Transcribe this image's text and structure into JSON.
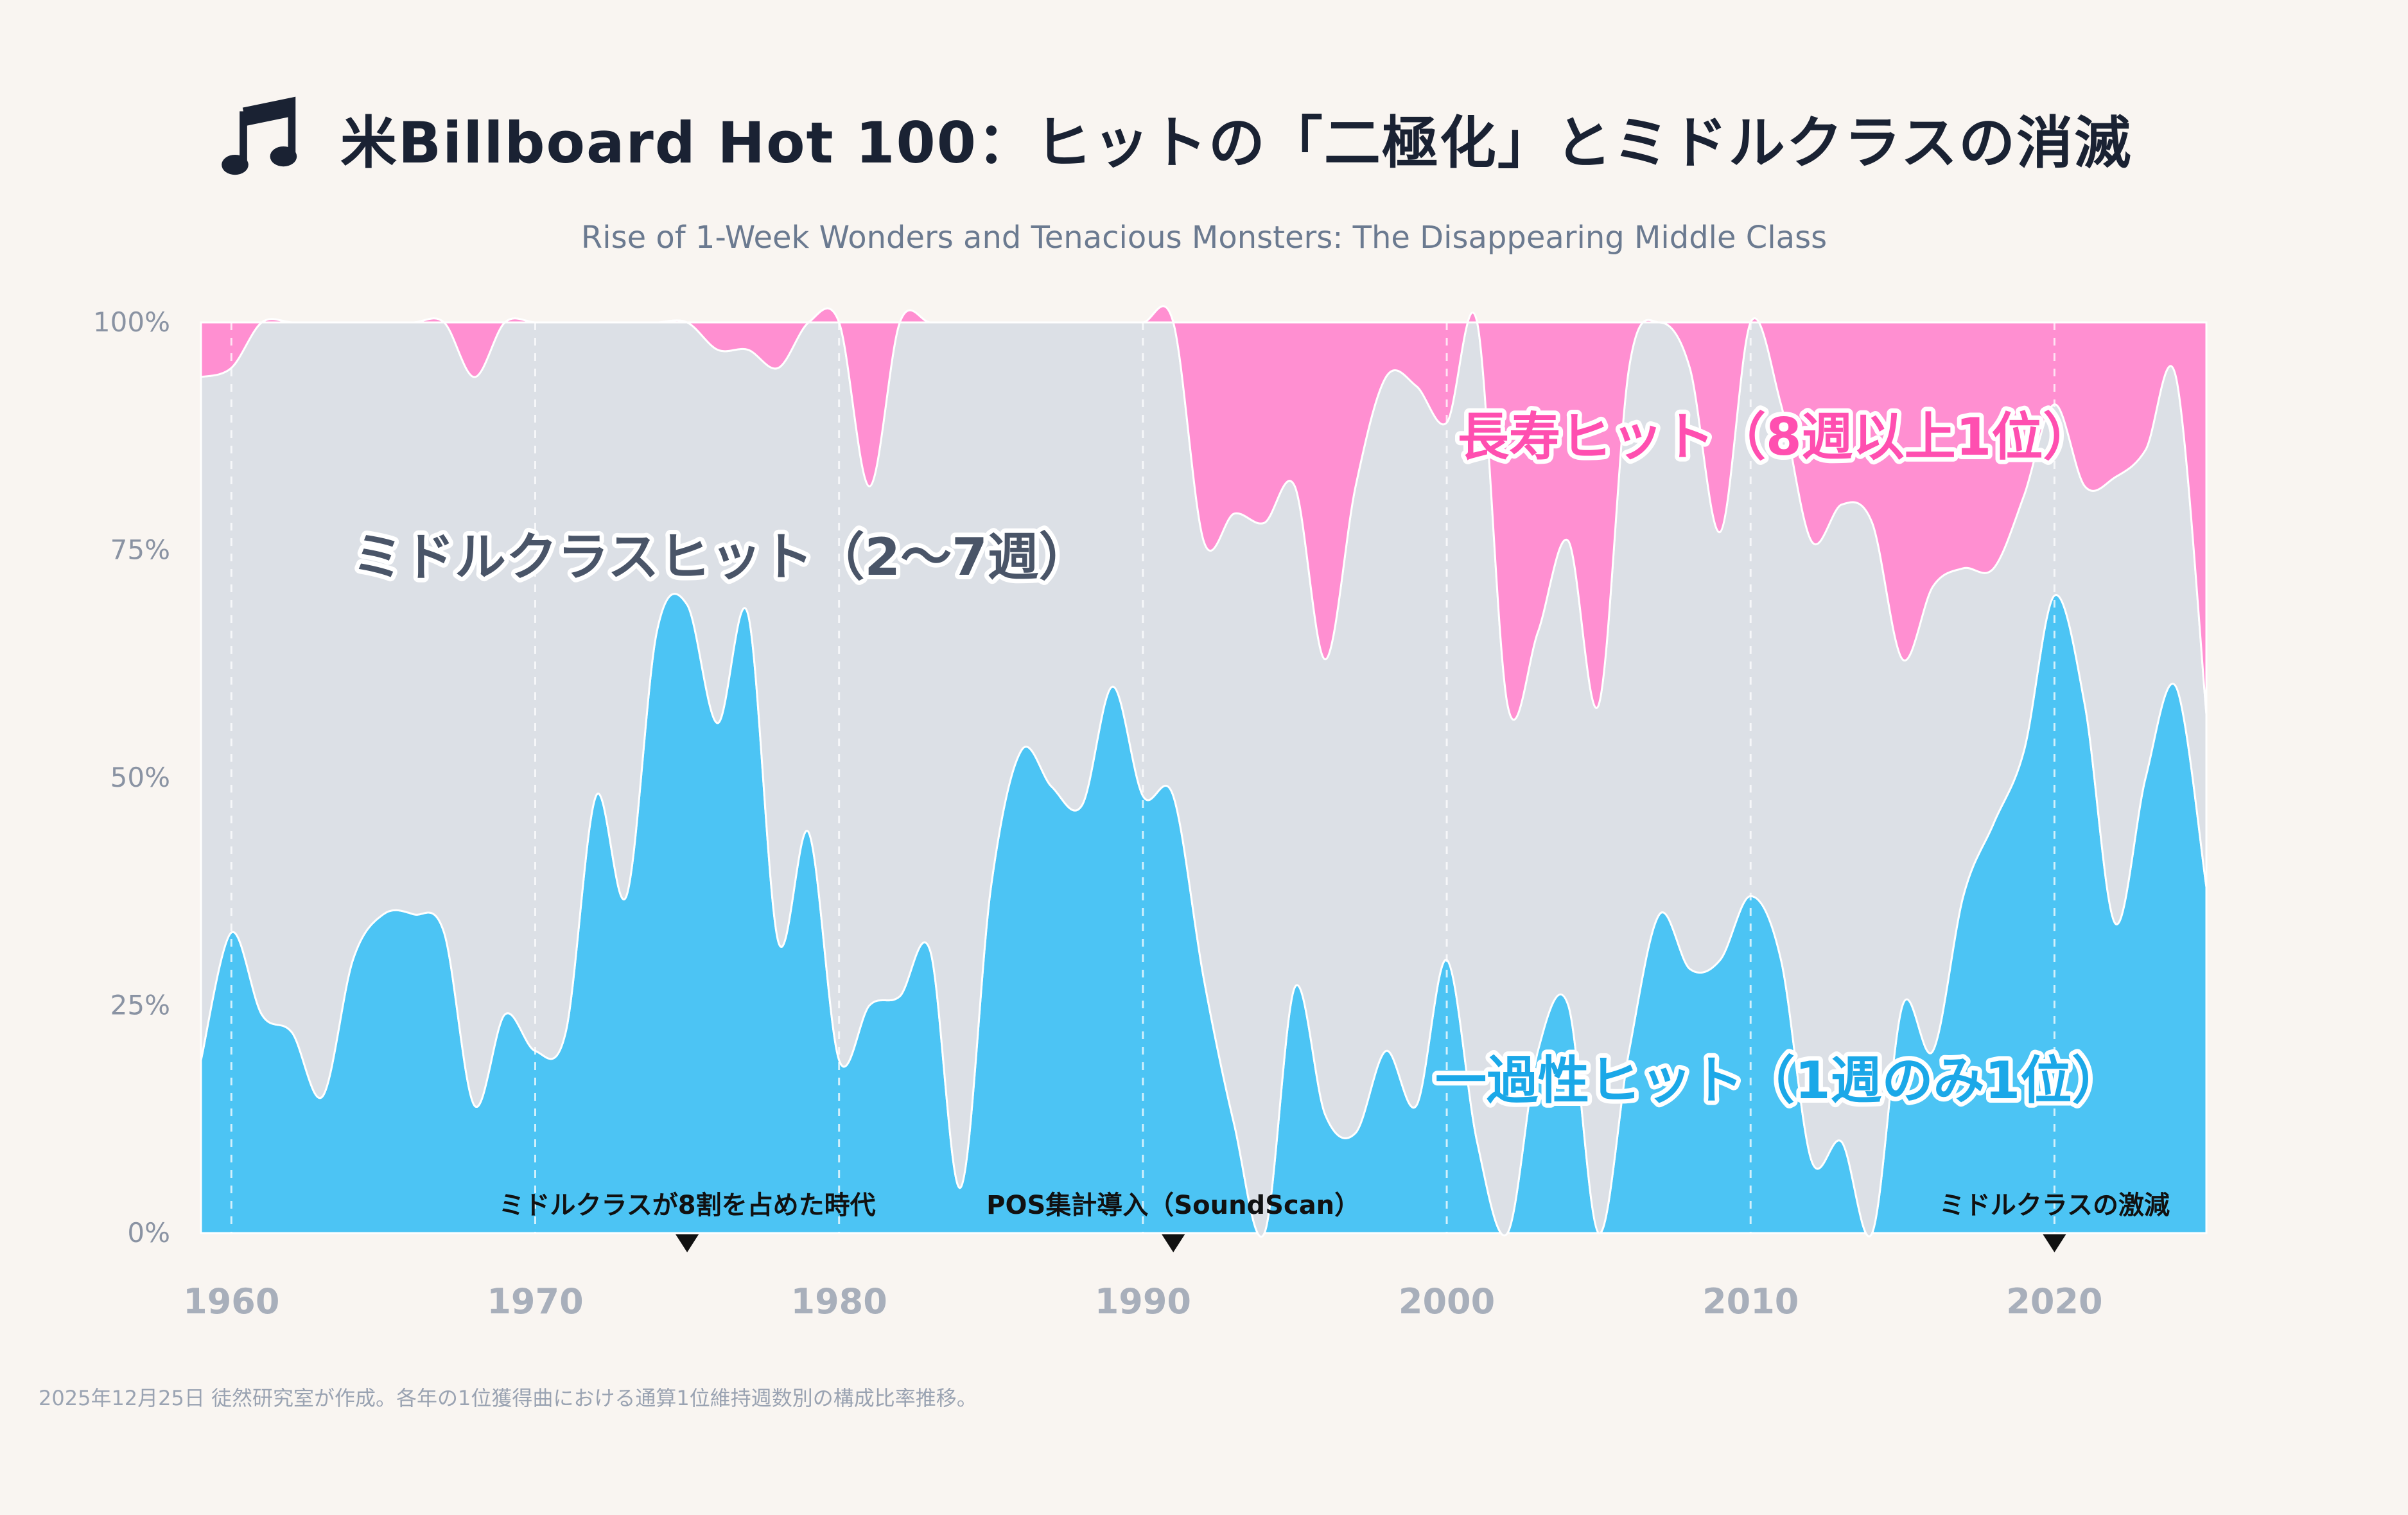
{
  "header": {
    "title": "米Billboard Hot 100：ヒットの「二極化」とミドルクラスの消滅",
    "subtitle": "Rise of 1-Week Wonders and Tenacious Monsters: The Disappearing Middle Class",
    "icon": "music-note-icon"
  },
  "footer": {
    "note": "2025年12月25日 徒然研究室が作成。各年の1位獲得曲における通算1位維持週数別の構成比率推移。"
  },
  "chart_data": {
    "type": "area",
    "stacked": true,
    "normalized": true,
    "x": [
      1959,
      1960,
      1961,
      1962,
      1963,
      1964,
      1965,
      1966,
      1967,
      1968,
      1969,
      1970,
      1971,
      1972,
      1973,
      1974,
      1975,
      1976,
      1977,
      1978,
      1979,
      1980,
      1981,
      1982,
      1983,
      1984,
      1985,
      1986,
      1987,
      1988,
      1989,
      1990,
      1991,
      1992,
      1993,
      1994,
      1995,
      1996,
      1997,
      1998,
      1999,
      2000,
      2001,
      2002,
      2003,
      2004,
      2005,
      2006,
      2007,
      2008,
      2009,
      2010,
      2011,
      2012,
      2013,
      2014,
      2015,
      2016,
      2017,
      2018,
      2019,
      2020,
      2021,
      2022,
      2023,
      2024,
      2025
    ],
    "series": [
      {
        "name": "一過性ヒット（1週のみ1位）",
        "color": "#4cc4f4",
        "values": [
          19,
          33,
          24,
          22,
          15,
          30,
          35,
          35,
          33,
          14,
          24,
          20,
          22,
          48,
          37,
          66,
          69,
          56,
          68,
          32,
          44,
          19,
          25,
          26,
          31,
          5,
          38,
          53,
          49,
          47,
          60,
          48,
          48,
          28,
          12,
          0,
          27,
          13,
          11,
          20,
          14,
          30,
          10,
          0,
          20,
          25,
          0,
          20,
          35,
          29,
          30,
          37,
          30,
          8,
          10,
          0,
          25,
          20,
          37,
          45,
          53,
          70,
          58,
          34,
          50,
          60,
          38
        ]
      },
      {
        "name": "ミドルクラスヒット（2〜7週）",
        "color": "#dce0e6",
        "values": [
          75,
          62,
          76,
          78,
          85,
          70,
          65,
          65,
          67,
          80,
          76,
          80,
          78,
          52,
          63,
          34,
          31,
          41,
          29,
          63,
          56,
          81,
          57,
          74,
          69,
          95,
          62,
          47,
          51,
          53,
          40,
          52,
          52,
          48,
          67,
          78,
          55,
          50,
          71,
          74,
          79,
          59,
          90,
          58,
          46,
          51,
          58,
          75,
          65,
          66,
          47,
          63,
          61,
          68,
          70,
          78,
          38,
          51,
          36,
          28,
          28,
          21,
          24,
          49,
          36,
          34,
          19
        ]
      },
      {
        "name": "長寿ヒット（8週以上1位）",
        "color": "#ff8fd1",
        "values": [
          6,
          5,
          0,
          0,
          0,
          0,
          0,
          0,
          0,
          6,
          0,
          0,
          0,
          0,
          0,
          0,
          0,
          3,
          3,
          5,
          0,
          0,
          18,
          0,
          0,
          0,
          0,
          0,
          0,
          0,
          0,
          0,
          0,
          24,
          21,
          22,
          18,
          37,
          18,
          6,
          7,
          11,
          0,
          42,
          34,
          24,
          42,
          5,
          0,
          5,
          23,
          0,
          9,
          24,
          20,
          22,
          37,
          29,
          27,
          27,
          19,
          9,
          18,
          17,
          14,
          6,
          43
        ]
      }
    ],
    "xlim": [
      1959,
      2025
    ],
    "ylim": [
      0,
      100
    ],
    "y_ticks": [
      "0%",
      "25%",
      "50%",
      "75%",
      "100%"
    ],
    "x_ticks": [
      "1960",
      "1970",
      "1980",
      "1990",
      "2000",
      "2010",
      "2020"
    ],
    "labels": {
      "middle": "ミドルクラスヒット（2〜7週）",
      "long": "長寿ヒット（8週以上1位）",
      "one": "一過性ヒット（1週のみ1位）"
    },
    "annotations": [
      {
        "year": 1975,
        "text": "ミドルクラスが8割を占めた時代"
      },
      {
        "year": 1991,
        "text": "POS集計導入（SoundScan）"
      },
      {
        "year": 2020,
        "text": "ミドルクラスの激減"
      }
    ],
    "grid": "vertical-dashed-decades"
  }
}
